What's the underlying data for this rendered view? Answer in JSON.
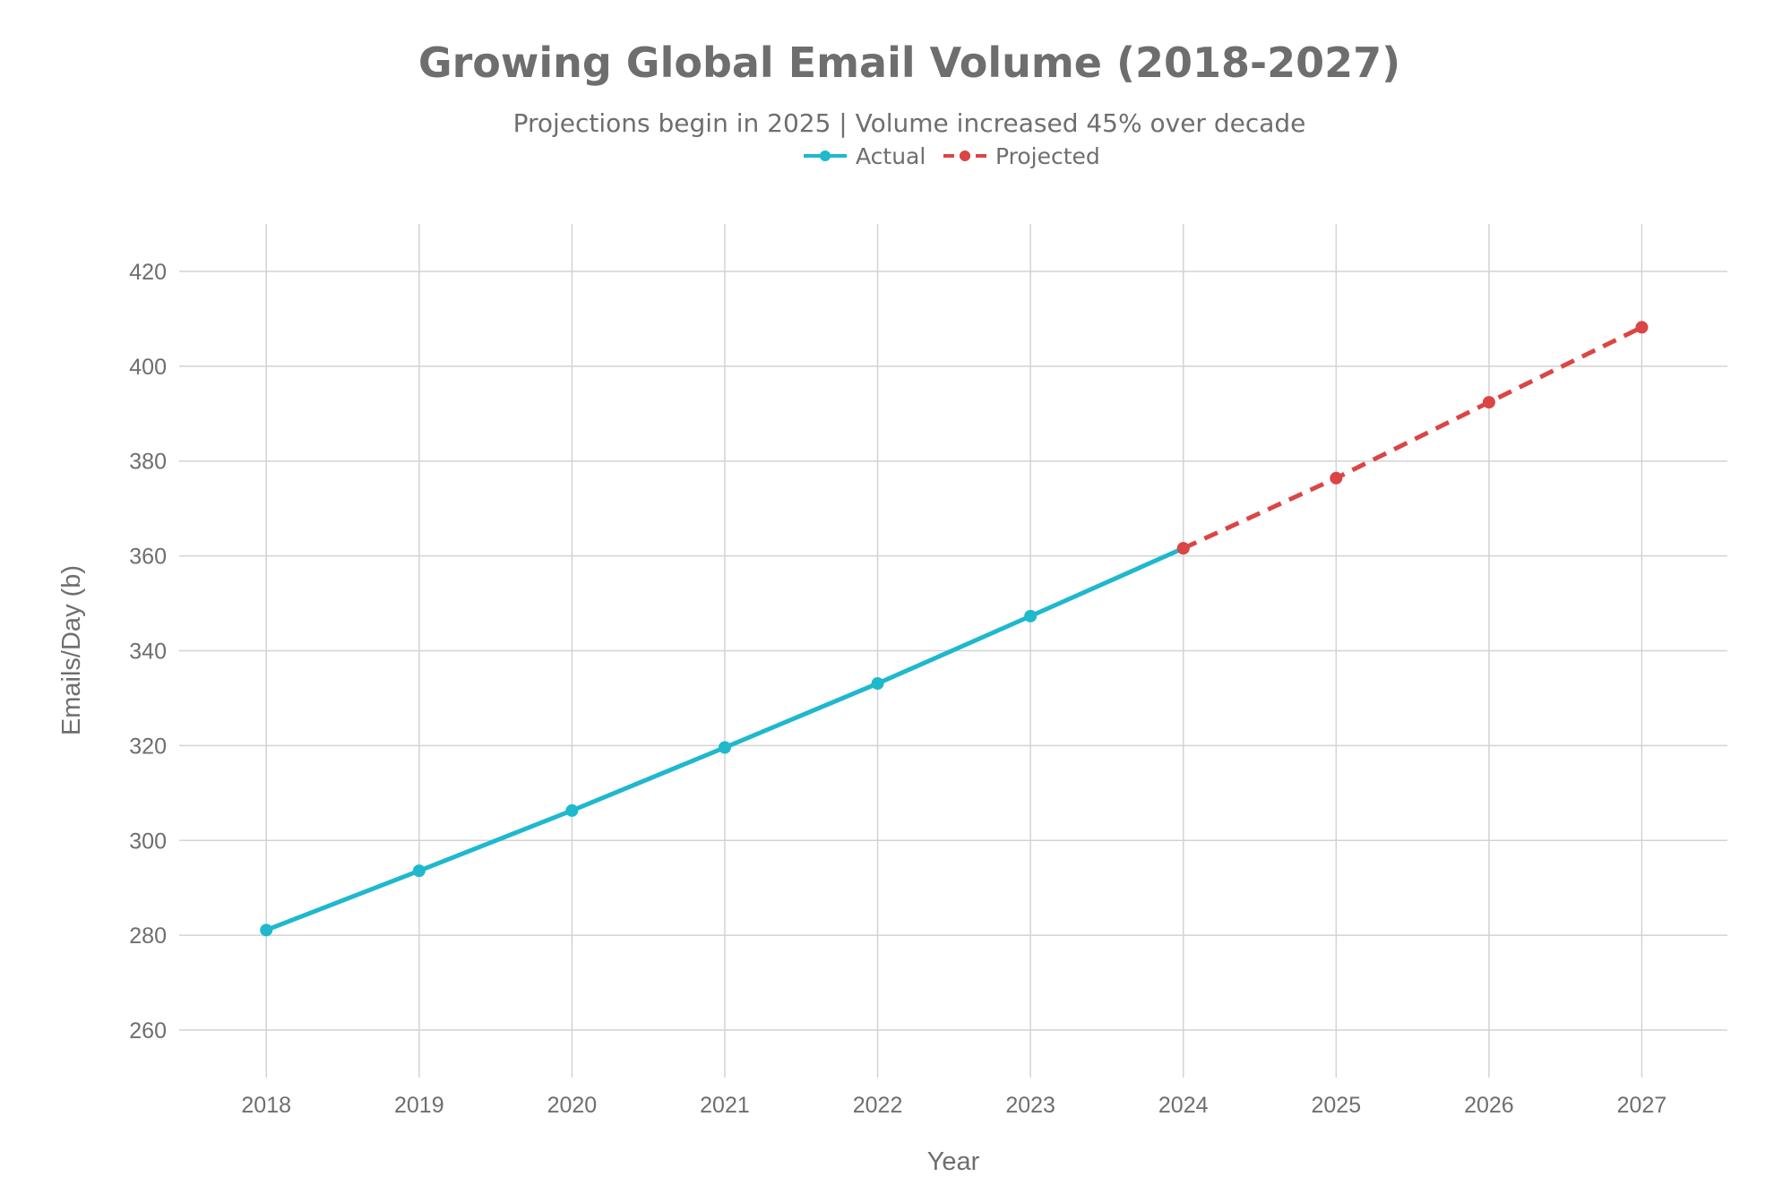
{
  "chart_data": {
    "type": "line",
    "title": "Growing Global Email Volume (2018-2027)",
    "subtitle": "Projections begin in 2025 | Volume increased 45% over decade",
    "xlabel": "Year",
    "ylabel": "Emails/Day (b)",
    "x": [
      2018,
      2019,
      2020,
      2021,
      2022,
      2023,
      2024,
      2025,
      2026,
      2027
    ],
    "x_ticks": [
      "2018",
      "2019",
      "2020",
      "2021",
      "2022",
      "2023",
      "2024",
      "2025",
      "2026",
      "2027"
    ],
    "y_ticks": [
      "260",
      "280",
      "300",
      "320",
      "340",
      "360",
      "380",
      "400",
      "420"
    ],
    "ylim": [
      250,
      430
    ],
    "xlim": [
      2017.43,
      2027.56
    ],
    "grid": true,
    "legend_position": "top-center",
    "series": [
      {
        "name": "Actual",
        "color": "#1fb8cd",
        "dash": "solid",
        "x": [
          2018,
          2019,
          2020,
          2021,
          2022,
          2023,
          2024
        ],
        "values": [
          281.1,
          293.6,
          306.3,
          319.6,
          333.1,
          347.3,
          361.6
        ]
      },
      {
        "name": "Projected",
        "color": "#db4545",
        "dash": "dashed",
        "x": [
          2024,
          2025,
          2026,
          2027
        ],
        "values": [
          361.6,
          376.4,
          392.4,
          408.2
        ]
      }
    ]
  }
}
